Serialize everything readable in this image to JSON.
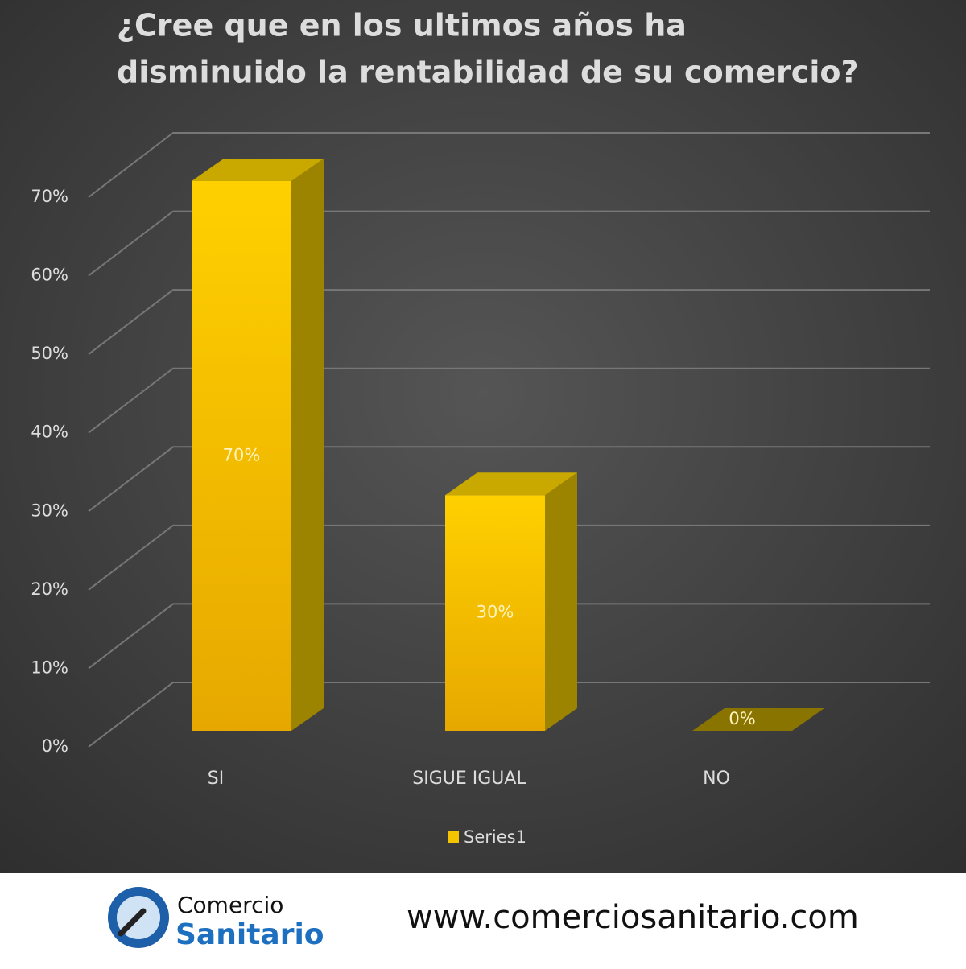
{
  "chart_data": {
    "type": "bar3d",
    "title": [
      "¿Cree que en los ultimos años ha",
      "disminuido la rentabilidad de su comercio?"
    ],
    "categories": [
      "SI",
      "SIGUE IGUAL",
      "NO"
    ],
    "series": [
      {
        "name": "Series1",
        "color": "#f5c400",
        "values": [
          70,
          30,
          0
        ],
        "value_labels": [
          "70%",
          "30%",
          "0%"
        ]
      }
    ],
    "ylim": [
      0,
      70
    ],
    "yticks": [
      {
        "value": 0,
        "label": "0%"
      },
      {
        "value": 10,
        "label": "10%"
      },
      {
        "value": 20,
        "label": "20%"
      },
      {
        "value": 30,
        "label": "30%"
      },
      {
        "value": 40,
        "label": "40%"
      },
      {
        "value": 50,
        "label": "50%"
      },
      {
        "value": 60,
        "label": "60%"
      },
      {
        "value": 70,
        "label": "70%"
      }
    ],
    "grid": true,
    "legend": "bottom"
  },
  "footer": {
    "brand_line1": "Comercio",
    "brand_line2": "Sanitario",
    "url": "www.comerciosanitario.com"
  }
}
